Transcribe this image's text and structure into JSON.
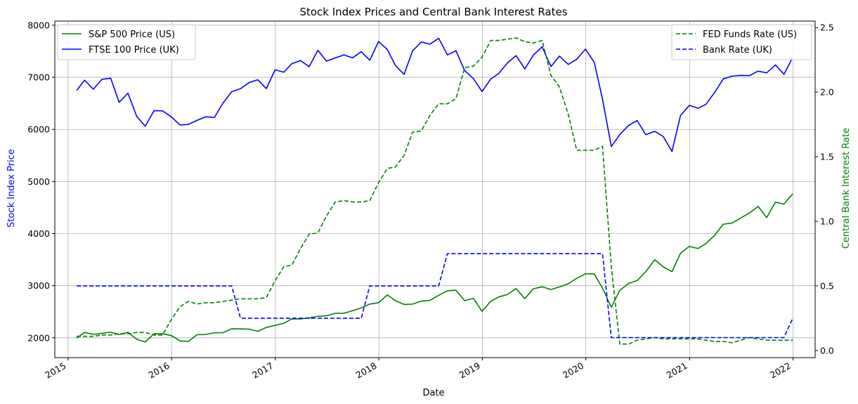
{
  "chart_data": {
    "type": "line",
    "title": "Stock Index Prices and Central Bank Interest Rates",
    "xlabel": "Date",
    "ylabel_left": "Stock Index Price",
    "ylabel_right": "Central Bank Interest Rate",
    "x_tick_labels": [
      "2015",
      "2016",
      "2017",
      "2018",
      "2019",
      "2020",
      "2021",
      "2022"
    ],
    "y_left_ticks": [
      2000,
      3000,
      4000,
      5000,
      6000,
      7000,
      8000
    ],
    "y_right_ticks": [
      0.0,
      0.5,
      1.0,
      1.5,
      2.0,
      2.5
    ],
    "y_left_lim": [
      1620,
      8080
    ],
    "y_right_lim": [
      -0.055,
      2.55
    ],
    "x_lim": [
      "2014-11-15",
      "2022-03-20"
    ],
    "grid": true,
    "legend_left_position": "upper-left",
    "legend_right_position": "upper-right",
    "x_dates": [
      "2015-01-31",
      "2015-02-28",
      "2015-03-31",
      "2015-04-30",
      "2015-05-31",
      "2015-06-30",
      "2015-07-31",
      "2015-08-31",
      "2015-09-30",
      "2015-10-31",
      "2015-11-30",
      "2015-12-31",
      "2016-01-31",
      "2016-02-29",
      "2016-03-31",
      "2016-04-30",
      "2016-05-31",
      "2016-06-30",
      "2016-07-31",
      "2016-08-31",
      "2016-09-30",
      "2016-10-31",
      "2016-11-30",
      "2016-12-31",
      "2017-01-31",
      "2017-02-28",
      "2017-03-31",
      "2017-04-30",
      "2017-05-31",
      "2017-06-30",
      "2017-07-31",
      "2017-08-31",
      "2017-09-30",
      "2017-10-31",
      "2017-11-30",
      "2017-12-31",
      "2018-01-31",
      "2018-02-28",
      "2018-03-31",
      "2018-04-30",
      "2018-05-31",
      "2018-06-30",
      "2018-07-31",
      "2018-08-31",
      "2018-09-30",
      "2018-10-31",
      "2018-11-30",
      "2018-12-31",
      "2019-01-31",
      "2019-02-28",
      "2019-03-31",
      "2019-04-30",
      "2019-05-31",
      "2019-06-30",
      "2019-07-31",
      "2019-08-31",
      "2019-09-30",
      "2019-10-31",
      "2019-11-30",
      "2019-12-31",
      "2020-01-31",
      "2020-02-29",
      "2020-03-31",
      "2020-04-30",
      "2020-05-31",
      "2020-06-30",
      "2020-07-31",
      "2020-08-31",
      "2020-09-30",
      "2020-10-31",
      "2020-11-30",
      "2020-12-31",
      "2021-01-31",
      "2021-02-28",
      "2021-03-31",
      "2021-04-30",
      "2021-05-31",
      "2021-06-30",
      "2021-07-31",
      "2021-08-31",
      "2021-09-30",
      "2021-10-31",
      "2021-11-30",
      "2021-12-31"
    ],
    "series": [
      {
        "name": "S&P 500 Price (US)",
        "axis": "left",
        "color": "#008000",
        "dash": false,
        "values": [
          1995,
          2105,
          2067,
          2086,
          2107,
          2063,
          2104,
          1972,
          1920,
          2079,
          2080,
          2044,
          1940,
          1932,
          2060,
          2065,
          2097,
          2099,
          2174,
          2171,
          2168,
          2126,
          2199,
          2239,
          2279,
          2364,
          2363,
          2384,
          2412,
          2423,
          2470,
          2472,
          2519,
          2575,
          2648,
          2674,
          2824,
          2714,
          2641,
          2648,
          2705,
          2718,
          2816,
          2902,
          2914,
          2712,
          2760,
          2507,
          2704,
          2784,
          2834,
          2946,
          2752,
          2942,
          2980,
          2926,
          2977,
          3038,
          3141,
          3231,
          3226,
          2954,
          2585,
          2912,
          3044,
          3100,
          3271,
          3500,
          3363,
          3270,
          3622,
          3756,
          3714,
          3811,
          3973,
          4181,
          4204,
          4298,
          4395,
          4523,
          4308,
          4605,
          4567,
          4766
        ]
      },
      {
        "name": "FTSE 100 Price (UK)",
        "axis": "left",
        "color": "#0000ff",
        "dash": false,
        "values": [
          6749,
          6946,
          6773,
          6961,
          6984,
          6521,
          6696,
          6248,
          6062,
          6361,
          6356,
          6242,
          6084,
          6097,
          6175,
          6242,
          6231,
          6504,
          6724,
          6782,
          6899,
          6954,
          6784,
          7143,
          7099,
          7263,
          7323,
          7204,
          7520,
          7312,
          7372,
          7431,
          7373,
          7493,
          7327,
          7688,
          7534,
          7232,
          7057,
          7509,
          7678,
          7637,
          7749,
          7432,
          7510,
          7128,
          6980,
          6728,
          6969,
          7075,
          7279,
          7418,
          7162,
          7426,
          7587,
          7207,
          7408,
          7248,
          7347,
          7542,
          7286,
          6580,
          5672,
          5901,
          6077,
          6170,
          5898,
          5964,
          5866,
          5577,
          6266,
          6461,
          6407,
          6483,
          6714,
          6970,
          7023,
          7037,
          7032,
          7119,
          7086,
          7238,
          7059,
          7385
        ]
      },
      {
        "name": "FED Funds Rate (US)",
        "axis": "right",
        "color": "#008000",
        "dash": true,
        "values": [
          0.11,
          0.11,
          0.11,
          0.12,
          0.12,
          0.13,
          0.13,
          0.14,
          0.14,
          0.12,
          0.12,
          0.24,
          0.34,
          0.38,
          0.36,
          0.37,
          0.37,
          0.38,
          0.39,
          0.4,
          0.4,
          0.4,
          0.41,
          0.54,
          0.65,
          0.66,
          0.79,
          0.9,
          0.91,
          1.04,
          1.15,
          1.16,
          1.15,
          1.15,
          1.16,
          1.3,
          1.41,
          1.42,
          1.51,
          1.69,
          1.7,
          1.82,
          1.91,
          1.91,
          1.95,
          2.19,
          2.2,
          2.27,
          2.4,
          2.4,
          2.41,
          2.42,
          2.39,
          2.38,
          2.4,
          2.13,
          2.04,
          1.83,
          1.55,
          1.55,
          1.55,
          1.58,
          0.65,
          0.05,
          0.05,
          0.08,
          0.09,
          0.1,
          0.09,
          0.09,
          0.09,
          0.09,
          0.09,
          0.08,
          0.07,
          0.07,
          0.06,
          0.08,
          0.1,
          0.09,
          0.08,
          0.08,
          0.08,
          0.08
        ]
      },
      {
        "name": "Bank Rate (UK)",
        "axis": "right",
        "color": "#0000ff",
        "dash": true,
        "values": [
          0.5,
          0.5,
          0.5,
          0.5,
          0.5,
          0.5,
          0.5,
          0.5,
          0.5,
          0.5,
          0.5,
          0.5,
          0.5,
          0.5,
          0.5,
          0.5,
          0.5,
          0.5,
          0.5,
          0.25,
          0.25,
          0.25,
          0.25,
          0.25,
          0.25,
          0.25,
          0.25,
          0.25,
          0.25,
          0.25,
          0.25,
          0.25,
          0.25,
          0.25,
          0.5,
          0.5,
          0.5,
          0.5,
          0.5,
          0.5,
          0.5,
          0.5,
          0.5,
          0.75,
          0.75,
          0.75,
          0.75,
          0.75,
          0.75,
          0.75,
          0.75,
          0.75,
          0.75,
          0.75,
          0.75,
          0.75,
          0.75,
          0.75,
          0.75,
          0.75,
          0.75,
          0.75,
          0.1,
          0.1,
          0.1,
          0.1,
          0.1,
          0.1,
          0.1,
          0.1,
          0.1,
          0.1,
          0.1,
          0.1,
          0.1,
          0.1,
          0.1,
          0.1,
          0.1,
          0.1,
          0.1,
          0.1,
          0.1,
          0.25
        ]
      }
    ]
  }
}
